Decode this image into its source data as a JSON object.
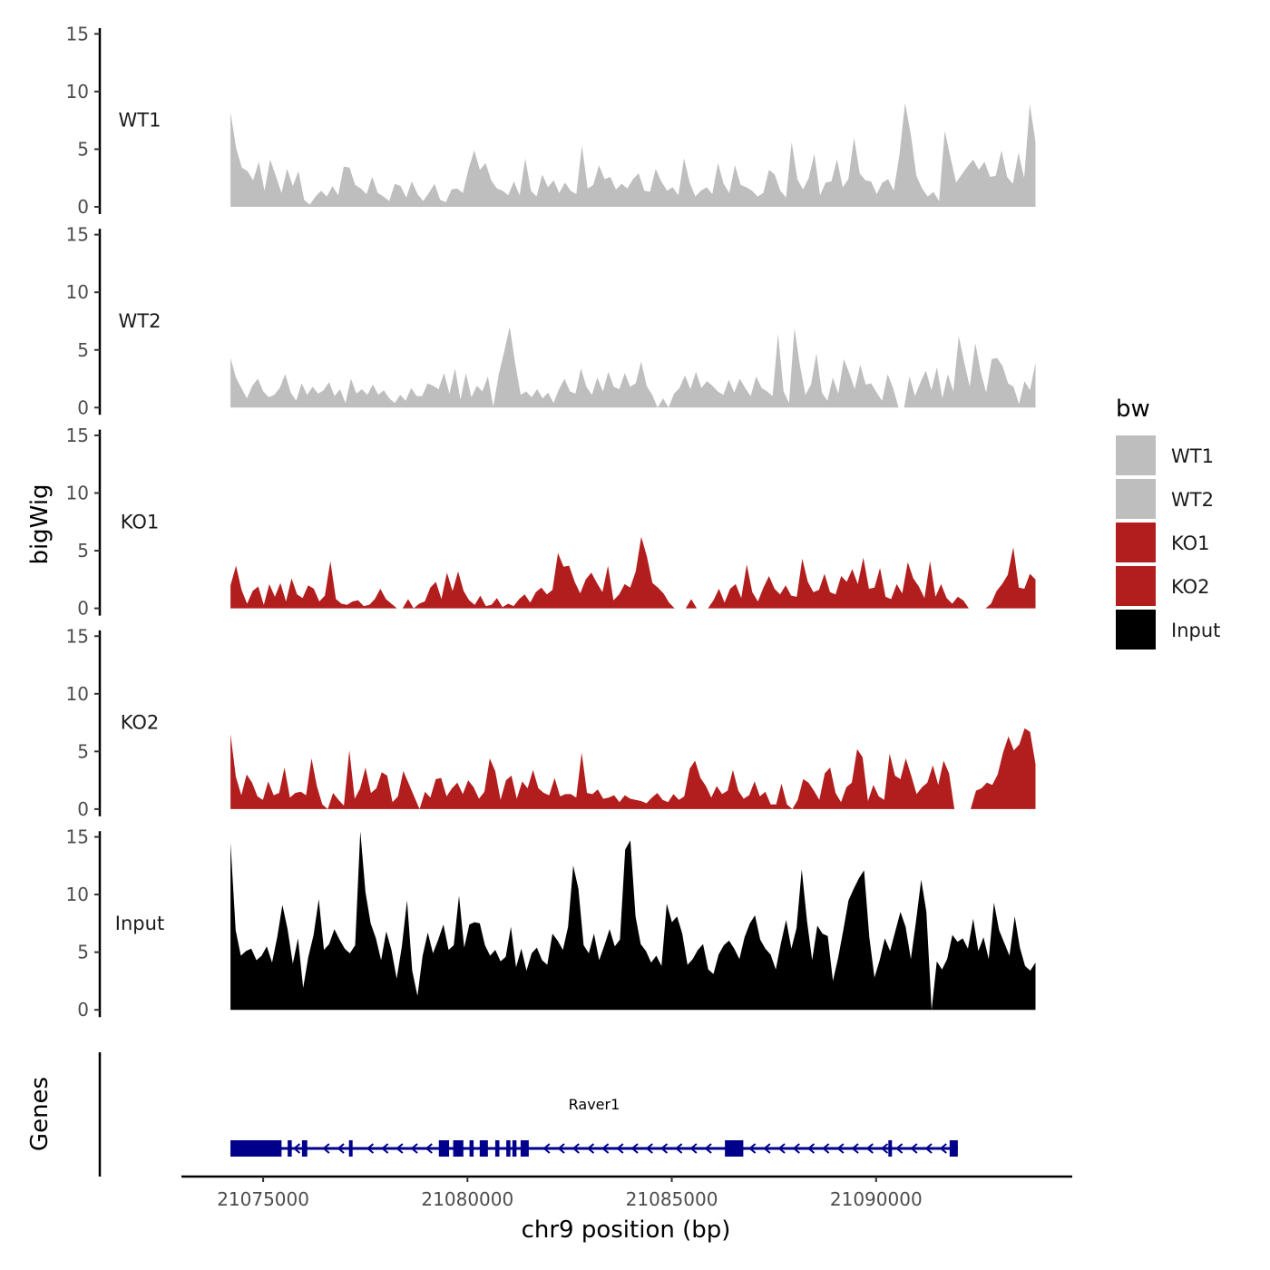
{
  "chart_data": {
    "type": "area",
    "ylabel": "bigWig",
    "xlabel": "chr9 position (bp)",
    "genes_label": "Genes",
    "xlim": [
      21073000,
      21094800
    ],
    "x_ticks": [
      21075000,
      21080000,
      21085000,
      21090000
    ],
    "x_tick_labels": [
      "21075000",
      "21080000",
      "21085000",
      "21090000"
    ],
    "ylim": [
      0,
      15.5
    ],
    "y_ticks": [
      0,
      5,
      10,
      15
    ],
    "y_tick_labels": [
      "0",
      "5",
      "10",
      "15"
    ],
    "legend": {
      "title": "bw",
      "items": [
        {
          "label": "WT1",
          "color": "#bebebe"
        },
        {
          "label": "WT2",
          "color": "#bebebe"
        },
        {
          "label": "KO1",
          "color": "#b21e1e"
        },
        {
          "label": "KO2",
          "color": "#b21e1e"
        },
        {
          "label": "Input",
          "color": "#000000"
        }
      ]
    },
    "x_start": 21074200,
    "x_end": 21093900,
    "series": [
      {
        "name": "WT1",
        "color": "#bebebe",
        "values": [
          8.2,
          5.1,
          3.4,
          3.1,
          2.3,
          3.9,
          1.4,
          4.1,
          2.7,
          1.2,
          3.3,
          1.8,
          3.1,
          0.6,
          0.2,
          0.9,
          1.4,
          0.9,
          1.8,
          1.0,
          3.5,
          3.4,
          1.9,
          1.6,
          1.1,
          2.6,
          1.2,
          0.9,
          0.5,
          2.0,
          1.8,
          0.8,
          2.2,
          1.1,
          0.5,
          1.2,
          2.0,
          0.6,
          0.4,
          1.5,
          1.6,
          1.2,
          3.3,
          4.9,
          3.2,
          3.8,
          2.3,
          1.6,
          1.4,
          1.0,
          2.2,
          1.0,
          4.2,
          1.4,
          0.9,
          2.8,
          1.7,
          2.3,
          1.2,
          2.1,
          1.4,
          1.1,
          5.3,
          1.6,
          1.9,
          3.6,
          2.4,
          2.6,
          1.5,
          2.0,
          1.6,
          2.4,
          2.9,
          1.4,
          1.3,
          3.3,
          2.2,
          1.4,
          1.7,
          1.0,
          4.2,
          2.1,
          0.9,
          1.4,
          1.7,
          1.1,
          3.8,
          2.0,
          1.2,
          3.6,
          1.9,
          1.7,
          1.4,
          0.9,
          1.2,
          3.2,
          2.8,
          1.4,
          0.8,
          5.6,
          2.4,
          1.5,
          2.5,
          4.6,
          1.0,
          2.1,
          2.2,
          4.1,
          1.7,
          2.4,
          6.0,
          2.9,
          2.3,
          2.2,
          1.1,
          2.1,
          2.4,
          1.4,
          4.5,
          9.0,
          6.3,
          2.7,
          1.6,
          0.9,
          1.3,
          0.5,
          6.6,
          4.3,
          2.1,
          2.8,
          3.5,
          4.1,
          3.2,
          3.9,
          2.6,
          2.7,
          4.9,
          2.6,
          2.0,
          4.7,
          2.5,
          8.9,
          5.6
        ]
      },
      {
        "name": "WT2",
        "color": "#bebebe",
        "values": [
          4.3,
          2.6,
          1.7,
          0.8,
          1.9,
          2.5,
          1.4,
          0.9,
          1.1,
          1.7,
          2.9,
          1.3,
          0.6,
          2.1,
          1.1,
          1.8,
          1.2,
          1.5,
          2.2,
          1.0,
          1.6,
          0.4,
          2.5,
          1.2,
          1.6,
          1.1,
          2.0,
          1.1,
          1.5,
          0.8,
          0.4,
          1.1,
          0.6,
          1.7,
          1.0,
          1.0,
          2.1,
          1.9,
          1.6,
          3.0,
          1.2,
          3.4,
          0.7,
          3.0,
          0.9,
          1.9,
          1.4,
          2.7,
          0.1,
          2.9,
          4.9,
          7.0,
          3.8,
          1.1,
          1.4,
          0.9,
          1.6,
          0.8,
          1.3,
          0.4,
          1.6,
          2.5,
          1.4,
          1.2,
          3.4,
          1.8,
          1.1,
          2.6,
          1.4,
          3.1,
          1.8,
          1.6,
          3.0,
          1.8,
          2.1,
          4.0,
          1.9,
          1.1,
          0.0,
          0.8,
          0.0,
          1.2,
          1.7,
          2.8,
          1.6,
          3.1,
          1.7,
          2.3,
          1.9,
          1.4,
          1.1,
          2.4,
          1.3,
          2.5,
          1.7,
          1.0,
          2.7,
          1.7,
          1.4,
          1.0,
          6.4,
          1.4,
          0.4,
          6.9,
          3.6,
          1.1,
          2.0,
          4.7,
          1.3,
          0.6,
          2.6,
          1.2,
          4.2,
          3.0,
          1.6,
          3.7,
          2.0,
          2.1,
          1.3,
          0.6,
          2.9,
          1.7,
          0.0,
          0.0,
          2.7,
          1.0,
          2.2,
          3.2,
          1.5,
          3.5,
          0.8,
          2.9,
          1.4,
          6.2,
          3.9,
          1.8,
          5.6,
          3.1,
          1.3,
          4.2,
          4.3,
          3.6,
          2.1,
          1.8,
          0.3,
          2.3,
          1.5,
          3.9
        ]
      },
      {
        "name": "KO1",
        "color": "#b21e1e",
        "values": [
          2.0,
          3.7,
          1.6,
          0.4,
          1.5,
          1.9,
          0.3,
          2.1,
          1.0,
          2.2,
          0.6,
          2.6,
          1.2,
          0.9,
          2.0,
          1.7,
          0.6,
          1.1,
          4.1,
          0.8,
          0.4,
          0.3,
          0.6,
          0.7,
          0.2,
          0.3,
          0.8,
          1.7,
          0.8,
          0.4,
          0.0,
          0.0,
          0.8,
          0.0,
          0.4,
          0.6,
          1.8,
          2.3,
          0.8,
          3.1,
          1.5,
          3.2,
          1.5,
          0.7,
          0.3,
          1.1,
          0.2,
          0.3,
          0.9,
          0.1,
          0.4,
          0.2,
          0.8,
          1.2,
          0.5,
          1.4,
          1.8,
          1.2,
          1.6,
          4.8,
          3.6,
          3.7,
          2.3,
          1.3,
          2.5,
          3.1,
          2.2,
          1.4,
          3.7,
          0.7,
          1.2,
          2.1,
          1.8,
          3.2,
          6.2,
          4.5,
          2.2,
          1.8,
          1.3,
          0.5,
          0.0,
          0.0,
          0.0,
          0.8,
          0.0,
          0.0,
          0.0,
          0.7,
          1.7,
          0.5,
          1.7,
          2.1,
          0.9,
          3.8,
          1.4,
          0.6,
          1.8,
          2.8,
          1.7,
          1.2,
          2.0,
          1.1,
          1.0,
          4.3,
          2.3,
          1.4,
          1.6,
          3.0,
          1.4,
          1.2,
          2.8,
          2.3,
          3.4,
          2.1,
          4.4,
          1.7,
          1.8,
          3.5,
          1.0,
          0.8,
          2.1,
          1.3,
          4.0,
          2.6,
          1.9,
          0.9,
          4.1,
          1.0,
          2.1,
          0.9,
          0.4,
          1.0,
          0.7,
          0.0,
          0.0,
          0.0,
          0.0,
          0.4,
          1.5,
          2.1,
          2.9,
          5.3,
          1.8,
          1.7,
          3.0,
          2.5
        ]
      },
      {
        "name": "KO2",
        "color": "#b21e1e",
        "values": [
          6.5,
          2.8,
          1.2,
          3.0,
          2.3,
          1.1,
          0.8,
          2.4,
          1.2,
          1.4,
          3.6,
          1.0,
          1.4,
          1.5,
          1.2,
          4.4,
          2.0,
          0.4,
          0.0,
          1.4,
          0.8,
          0.3,
          5.1,
          0.9,
          1.8,
          3.6,
          1.4,
          1.8,
          3.2,
          2.9,
          0.6,
          1.1,
          3.3,
          2.2,
          1.1,
          0.0,
          1.5,
          1.0,
          2.6,
          2.7,
          1.1,
          1.8,
          2.3,
          1.3,
          2.5,
          1.9,
          0.9,
          1.5,
          4.4,
          3.3,
          0.8,
          2.5,
          2.9,
          0.9,
          2.4,
          1.8,
          3.4,
          1.8,
          1.4,
          1.2,
          2.7,
          1.1,
          1.3,
          1.3,
          1.0,
          4.9,
          1.4,
          1.3,
          1.7,
          0.9,
          1.0,
          1.2,
          0.6,
          1.2,
          0.9,
          0.8,
          0.7,
          0.5,
          1.0,
          1.4,
          0.8,
          0.6,
          1.3,
          0.8,
          1.1,
          3.5,
          4.2,
          2.7,
          2.0,
          1.0,
          2.0,
          1.3,
          1.6,
          3.4,
          1.6,
          0.9,
          1.2,
          2.4,
          1.1,
          1.5,
          0.4,
          0.4,
          2.2,
          0.4,
          0.0,
          0.8,
          2.6,
          2.3,
          1.6,
          0.8,
          3.1,
          3.6,
          1.4,
          0.6,
          1.9,
          2.3,
          5.2,
          4.5,
          0.7,
          2.1,
          1.1,
          0.8,
          4.8,
          2.9,
          2.6,
          4.4,
          2.9,
          1.3,
          1.9,
          2.3,
          3.8,
          2.1,
          4.2,
          3.1,
          0.0,
          0.0,
          0.0,
          0.0,
          1.6,
          1.8,
          2.3,
          2.1,
          3.0,
          4.9,
          6.3,
          5.1,
          5.6,
          7.0,
          6.7,
          3.9
        ]
      },
      {
        "name": "Input",
        "color": "#000000",
        "values": [
          14.5,
          6.9,
          4.7,
          5.1,
          5.3,
          4.3,
          4.7,
          5.5,
          4.1,
          6.3,
          9.1,
          7.0,
          4.0,
          6.2,
          1.9,
          4.6,
          6.5,
          9.6,
          5.2,
          5.7,
          7.0,
          6.1,
          5.3,
          4.9,
          5.6,
          15.5,
          10.2,
          7.5,
          6.2,
          4.3,
          6.8,
          5.2,
          2.7,
          5.5,
          9.5,
          3.4,
          1.2,
          4.7,
          6.7,
          4.9,
          6.1,
          7.4,
          5.2,
          5.6,
          9.9,
          5.4,
          7.4,
          7.6,
          7.5,
          5.6,
          4.7,
          5.2,
          4.2,
          4.6,
          7.2,
          3.7,
          5.3,
          3.4,
          4.9,
          5.4,
          4.3,
          3.9,
          6.6,
          6.0,
          5.2,
          7.2,
          12.5,
          10.5,
          5.6,
          4.9,
          6.6,
          4.3,
          5.6,
          7.0,
          5.5,
          6.1,
          13.9,
          14.7,
          8.1,
          5.7,
          5.1,
          4.1,
          4.7,
          3.8,
          9.2,
          7.6,
          8.1,
          6.6,
          3.9,
          4.4,
          5.2,
          5.7,
          3.5,
          3.1,
          4.8,
          5.6,
          6.0,
          5.3,
          4.4,
          6.3,
          7.5,
          8.2,
          6.1,
          5.3,
          4.8,
          3.5,
          5.8,
          7.8,
          5.3,
          7.1,
          12.2,
          7.7,
          4.3,
          7.3,
          6.6,
          6.4,
          2.5,
          4.5,
          6.9,
          9.5,
          10.5,
          11.4,
          12.1,
          6.3,
          2.8,
          4.3,
          6.2,
          5.1,
          6.8,
          8.5,
          7.2,
          4.4,
          7.7,
          11.3,
          8.5,
          0.0,
          4.2,
          3.5,
          4.4,
          6.5,
          5.9,
          6.2,
          5.3,
          7.9,
          5.1,
          6.3,
          4.4,
          9.3,
          6.9,
          5.8,
          4.7,
          8.1,
          5.4,
          3.8,
          3.4,
          4.1
        ]
      }
    ],
    "gene": {
      "name": "Raver1",
      "strand": "-",
      "color": "#00008b",
      "start": 21074200,
      "end": 21092000,
      "exons": [
        [
          21074200,
          21075450
        ],
        [
          21075600,
          21075700
        ],
        [
          21075950,
          21076080
        ],
        [
          21077100,
          21077180
        ],
        [
          21079300,
          21079550
        ],
        [
          21079650,
          21079900
        ],
        [
          21080050,
          21080150
        ],
        [
          21080300,
          21080500
        ],
        [
          21080680,
          21080780
        ],
        [
          21080950,
          21081050
        ],
        [
          21081100,
          21081200
        ],
        [
          21081300,
          21081500
        ],
        [
          21086300,
          21086750
        ],
        [
          21090300,
          21090370
        ],
        [
          21091800,
          21092000
        ]
      ]
    }
  }
}
